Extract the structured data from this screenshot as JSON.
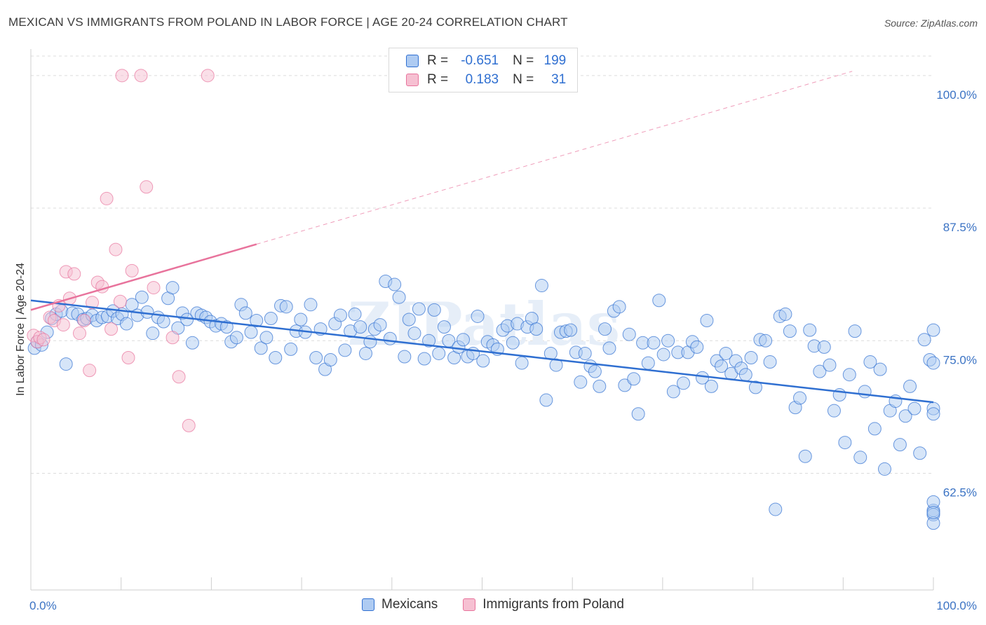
{
  "title": "MEXICAN VS IMMIGRANTS FROM POLAND IN LABOR FORCE | AGE 20-24 CORRELATION CHART",
  "source": "Source: ZipAtlas.com",
  "watermark": "ZIPatlas",
  "colors": {
    "blue": "#2f6fd1",
    "blue_fill": "#aecbf2",
    "pink": "#e8739c",
    "pink_fill": "#f6c0d2",
    "grid": "#dcdcdc",
    "tick_label": "#3b73c4"
  },
  "legend": {
    "r_label": "R =",
    "n_label": "N =",
    "rows": [
      {
        "r": "-0.651",
        "n": "199",
        "color": "blue"
      },
      {
        "r": "0.183",
        "n": "31",
        "color": "pink"
      }
    ]
  },
  "chart_data": {
    "type": "scatter",
    "title": "MEXICAN VS IMMIGRANTS FROM POLAND IN LABOR FORCE | AGE 20-24 CORRELATION CHART",
    "xlabel": "",
    "ylabel": "In Labor Force | Age 20-24",
    "xlim": [
      0,
      100
    ],
    "ylim": [
      51.5,
      102.5
    ],
    "x_tick_labels": [
      {
        "value": 0,
        "label": "0.0%"
      },
      {
        "value": 100,
        "label": "100.0%"
      }
    ],
    "y_ticks": [
      {
        "value": 62.5,
        "label": "62.5%"
      },
      {
        "value": 75.0,
        "label": "75.0%"
      },
      {
        "value": 87.5,
        "label": "87.5%"
      },
      {
        "value": 100.0,
        "label": "100.0%"
      }
    ],
    "grid": true,
    "legend_position": "top-center",
    "series": [
      {
        "name": "Mexicans",
        "color": "blue",
        "r": -0.651,
        "n": 199,
        "trend": {
          "x": [
            0,
            100
          ],
          "y": [
            78.8,
            69.2
          ],
          "dashed_extension": false
        },
        "points": [
          [
            0.4,
            74.3
          ],
          [
            0.7,
            74.9
          ],
          [
            1.2,
            74.6
          ],
          [
            1.8,
            75.8
          ],
          [
            2.3,
            77.1
          ],
          [
            2.8,
            77.5
          ],
          [
            3.4,
            77.8
          ],
          [
            3.9,
            72.8
          ],
          [
            4.6,
            77.6
          ],
          [
            5.2,
            77.5
          ],
          [
            5.8,
            77.0
          ],
          [
            6.2,
            77.1
          ],
          [
            6.8,
            77.4
          ],
          [
            7.3,
            76.9
          ],
          [
            7.9,
            77.2
          ],
          [
            8.5,
            77.3
          ],
          [
            9.1,
            77.8
          ],
          [
            9.6,
            77.1
          ],
          [
            10.1,
            77.5
          ],
          [
            10.6,
            76.6
          ],
          [
            11.2,
            78.4
          ],
          [
            11.8,
            77.4
          ],
          [
            12.3,
            79.1
          ],
          [
            12.9,
            77.7
          ],
          [
            13.5,
            75.7
          ],
          [
            14.1,
            77.2
          ],
          [
            14.7,
            76.8
          ],
          [
            15.2,
            79.0
          ],
          [
            15.7,
            80.0
          ],
          [
            16.3,
            76.2
          ],
          [
            16.8,
            77.6
          ],
          [
            17.3,
            77.0
          ],
          [
            17.9,
            74.8
          ],
          [
            18.4,
            77.6
          ],
          [
            18.9,
            77.4
          ],
          [
            19.4,
            77.2
          ],
          [
            19.9,
            76.8
          ],
          [
            20.5,
            76.4
          ],
          [
            21.1,
            76.6
          ],
          [
            21.7,
            76.3
          ],
          [
            22.2,
            74.9
          ],
          [
            22.8,
            75.3
          ],
          [
            23.3,
            78.4
          ],
          [
            23.8,
            77.6
          ],
          [
            24.4,
            75.8
          ],
          [
            25.0,
            76.9
          ],
          [
            25.5,
            74.3
          ],
          [
            26.1,
            75.3
          ],
          [
            26.6,
            77.1
          ],
          [
            27.1,
            73.4
          ],
          [
            27.7,
            78.3
          ],
          [
            28.3,
            78.2
          ],
          [
            28.8,
            74.2
          ],
          [
            29.4,
            75.9
          ],
          [
            29.9,
            77.0
          ],
          [
            30.4,
            75.8
          ],
          [
            31.0,
            78.4
          ],
          [
            31.6,
            73.4
          ],
          [
            32.1,
            76.1
          ],
          [
            32.6,
            72.3
          ],
          [
            33.2,
            73.2
          ],
          [
            33.7,
            76.6
          ],
          [
            34.3,
            77.4
          ],
          [
            34.8,
            74.1
          ],
          [
            35.4,
            75.9
          ],
          [
            35.9,
            77.5
          ],
          [
            36.5,
            76.3
          ],
          [
            37.1,
            73.8
          ],
          [
            37.6,
            74.9
          ],
          [
            38.1,
            76.1
          ],
          [
            38.7,
            76.5
          ],
          [
            39.3,
            80.6
          ],
          [
            39.8,
            75.2
          ],
          [
            40.3,
            80.3
          ],
          [
            40.8,
            79.1
          ],
          [
            41.4,
            73.5
          ],
          [
            41.9,
            77.0
          ],
          [
            42.5,
            75.7
          ],
          [
            43.0,
            78.0
          ],
          [
            43.6,
            73.3
          ],
          [
            44.1,
            75.0
          ],
          [
            44.7,
            77.9
          ],
          [
            45.2,
            73.8
          ],
          [
            45.8,
            76.3
          ],
          [
            46.3,
            75.0
          ],
          [
            46.9,
            73.4
          ],
          [
            47.4,
            74.4
          ],
          [
            47.9,
            75.1
          ],
          [
            48.4,
            73.5
          ],
          [
            49.0,
            73.8
          ],
          [
            49.5,
            77.3
          ],
          [
            50.1,
            73.1
          ],
          [
            50.6,
            74.9
          ],
          [
            51.2,
            74.6
          ],
          [
            51.7,
            74.2
          ],
          [
            52.3,
            76.0
          ],
          [
            52.8,
            76.4
          ],
          [
            53.4,
            74.8
          ],
          [
            53.9,
            76.6
          ],
          [
            54.4,
            72.9
          ],
          [
            55.0,
            76.3
          ],
          [
            55.5,
            77.1
          ],
          [
            56.0,
            76.1
          ],
          [
            56.6,
            80.2
          ],
          [
            57.1,
            69.4
          ],
          [
            57.6,
            73.8
          ],
          [
            58.2,
            72.7
          ],
          [
            58.7,
            75.8
          ],
          [
            59.3,
            75.9
          ],
          [
            59.8,
            76.0
          ],
          [
            60.4,
            73.9
          ],
          [
            60.9,
            71.1
          ],
          [
            61.4,
            73.8
          ],
          [
            62.0,
            72.6
          ],
          [
            62.5,
            72.1
          ],
          [
            63.0,
            70.7
          ],
          [
            63.6,
            76.1
          ],
          [
            64.1,
            74.3
          ],
          [
            64.6,
            77.8
          ],
          [
            65.2,
            78.2
          ],
          [
            65.8,
            70.8
          ],
          [
            66.3,
            75.6
          ],
          [
            66.8,
            71.4
          ],
          [
            67.3,
            68.1
          ],
          [
            67.8,
            74.8
          ],
          [
            68.4,
            72.9
          ],
          [
            69.0,
            74.8
          ],
          [
            69.6,
            78.8
          ],
          [
            70.1,
            73.7
          ],
          [
            70.6,
            75.0
          ],
          [
            71.2,
            70.2
          ],
          [
            71.7,
            73.9
          ],
          [
            72.3,
            71.0
          ],
          [
            72.8,
            73.9
          ],
          [
            73.3,
            74.9
          ],
          [
            73.8,
            74.4
          ],
          [
            74.4,
            71.5
          ],
          [
            74.9,
            76.9
          ],
          [
            75.4,
            70.7
          ],
          [
            76.0,
            73.1
          ],
          [
            76.5,
            72.6
          ],
          [
            77.0,
            73.8
          ],
          [
            77.6,
            71.9
          ],
          [
            78.1,
            73.1
          ],
          [
            78.7,
            72.4
          ],
          [
            79.2,
            71.8
          ],
          [
            79.8,
            73.4
          ],
          [
            80.3,
            70.6
          ],
          [
            80.8,
            75.1
          ],
          [
            81.4,
            75.0
          ],
          [
            81.9,
            73.0
          ],
          [
            82.5,
            59.1
          ],
          [
            83.0,
            77.3
          ],
          [
            83.6,
            77.5
          ],
          [
            84.1,
            75.9
          ],
          [
            84.7,
            68.7
          ],
          [
            85.2,
            69.6
          ],
          [
            85.8,
            64.1
          ],
          [
            86.3,
            76.0
          ],
          [
            86.8,
            74.5
          ],
          [
            87.4,
            72.1
          ],
          [
            87.9,
            74.4
          ],
          [
            88.5,
            72.7
          ],
          [
            89.0,
            68.4
          ],
          [
            89.6,
            69.9
          ],
          [
            90.2,
            65.4
          ],
          [
            90.7,
            71.8
          ],
          [
            91.3,
            75.9
          ],
          [
            91.9,
            64.0
          ],
          [
            92.4,
            70.2
          ],
          [
            93.0,
            73.0
          ],
          [
            93.5,
            66.7
          ],
          [
            94.1,
            72.3
          ],
          [
            94.6,
            62.9
          ],
          [
            95.2,
            68.4
          ],
          [
            95.8,
            69.3
          ],
          [
            96.3,
            65.2
          ],
          [
            96.9,
            67.9
          ],
          [
            97.4,
            70.7
          ],
          [
            97.9,
            68.6
          ],
          [
            98.5,
            64.4
          ],
          [
            99.0,
            75.1
          ],
          [
            99.6,
            73.2
          ],
          [
            100.0,
            59.0
          ],
          [
            100.0,
            72.9
          ],
          [
            100.0,
            59.8
          ],
          [
            100.0,
            58.6
          ],
          [
            100.0,
            57.8
          ],
          [
            100.0,
            58.8
          ],
          [
            100.0,
            68.6
          ],
          [
            100.0,
            76.0
          ],
          [
            100.0,
            68.1
          ]
        ]
      },
      {
        "name": "Immigrants from Poland",
        "color": "pink",
        "r": 0.183,
        "n": 31,
        "trend": {
          "x": [
            0,
            25
          ],
          "y": [
            77.9,
            84.1
          ],
          "dashed_extension": true,
          "extension_to": {
            "x": 91,
            "y": 100.4
          }
        },
        "points": [
          [
            0.3,
            75.5
          ],
          [
            0.7,
            74.9
          ],
          [
            1.0,
            75.3
          ],
          [
            1.4,
            75.1
          ],
          [
            2.1,
            77.2
          ],
          [
            2.6,
            76.9
          ],
          [
            3.1,
            78.3
          ],
          [
            3.6,
            76.5
          ],
          [
            3.9,
            81.5
          ],
          [
            4.3,
            79.0
          ],
          [
            4.8,
            81.3
          ],
          [
            5.4,
            75.7
          ],
          [
            5.9,
            76.9
          ],
          [
            6.5,
            72.2
          ],
          [
            6.8,
            78.6
          ],
          [
            7.4,
            80.5
          ],
          [
            7.9,
            80.1
          ],
          [
            8.4,
            88.4
          ],
          [
            8.9,
            76.1
          ],
          [
            9.4,
            83.6
          ],
          [
            9.9,
            78.7
          ],
          [
            10.1,
            100.0
          ],
          [
            10.8,
            73.4
          ],
          [
            11.2,
            81.6
          ],
          [
            12.2,
            100.0
          ],
          [
            12.8,
            89.5
          ],
          [
            13.6,
            80.0
          ],
          [
            15.7,
            75.3
          ],
          [
            16.4,
            71.6
          ],
          [
            17.5,
            67.0
          ],
          [
            19.6,
            100.0
          ]
        ]
      }
    ]
  }
}
